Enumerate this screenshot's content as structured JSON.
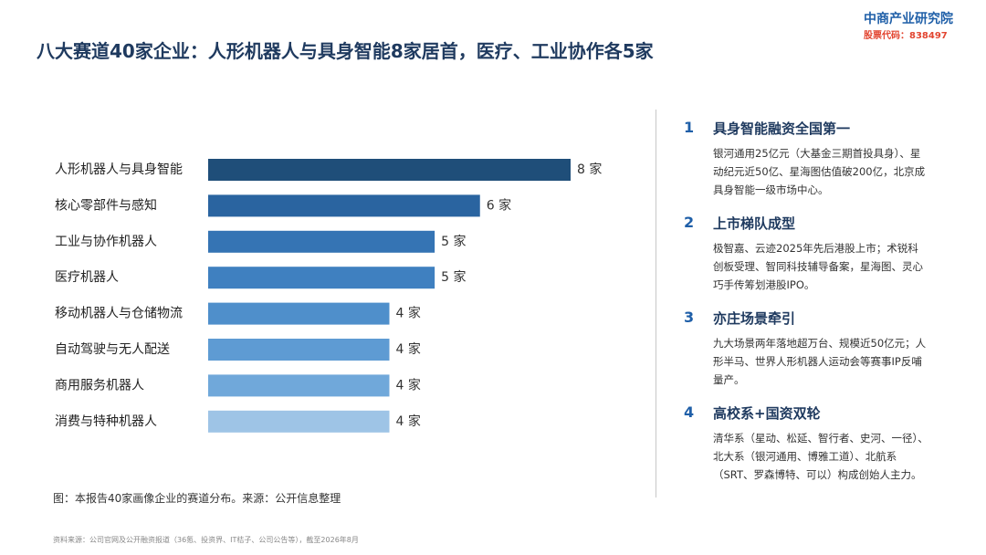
{
  "header": {
    "title": "八大赛道40家企业：人形机器人与具身智能8家居首，医疗、工业协作各5家",
    "logo_name": "中商产业研究院",
    "logo_code": "股票代码：838497"
  },
  "chart_data": {
    "type": "bar",
    "orientation": "horizontal",
    "categories": [
      "人形机器人与具身智能",
      "核心零部件与感知",
      "工业与协作机器人",
      "医疗机器人",
      "移动机器人与仓储物流",
      "自动驾驶与无人配送",
      "商用服务机器人",
      "消费与特种机器人"
    ],
    "values": [
      8,
      6,
      5,
      5,
      4,
      4,
      4,
      4
    ],
    "value_labels": [
      "8 家",
      "6 家",
      "5 家",
      "5 家",
      "4 家",
      "4 家",
      "4 家",
      "4 家"
    ],
    "colors": [
      "#1f4e79",
      "#2a64a0",
      "#3574b4",
      "#3f80c0",
      "#4f8fcb",
      "#5e9bd3",
      "#70a8da",
      "#9ec4e6"
    ]
  },
  "caption": "图：本报告40家画像企业的赛道分布。来源：公开信息整理",
  "points": [
    {
      "number": "1",
      "heading": "具身智能融资全国第一",
      "lines": [
        "银河通用25亿元（大基金三期首投具身）、星",
        "动纪元近50亿、星海图估值破200亿，北京成",
        "具身智能一级市场中心。"
      ]
    },
    {
      "number": "2",
      "heading": "上市梯队成型",
      "lines": [
        "极智嘉、云迹2025年先后港股上市；术锐科",
        "创板受理、智同科技辅导备案，星海图、灵心",
        "巧手传筹划港股IPO。"
      ]
    },
    {
      "number": "3",
      "heading": "亦庄场景牵引",
      "lines": [
        "九大场景两年落地超万台、规模近50亿元；人",
        "形半马、世界人形机器人运动会等赛事IP反哺",
        "量产。"
      ]
    },
    {
      "number": "4",
      "heading": "高校系+国资双轮",
      "lines": [
        "清华系（星动、松延、智行者、史河、一径）、",
        "北大系（银河通用、博雅工道）、北航系",
        "（SRT、罗森博特、可以）构成创始人主力。"
      ]
    }
  ],
  "footer": "资料来源：公司官网及公开融资报道（36氪、投资界、IT桔子、公司公告等），截至2026年8月"
}
